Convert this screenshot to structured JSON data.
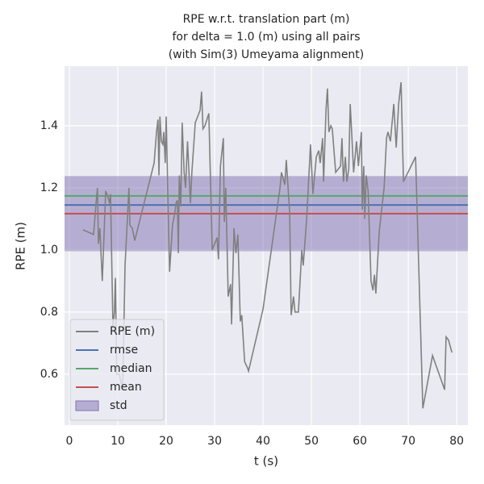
{
  "chart_data": {
    "type": "line",
    "title": [
      "RPE w.r.t. translation part (m)",
      "for delta = 1.0 (m) using all pairs",
      "(with Sim(3) Umeyama alignment)"
    ],
    "xlabel": "t (s)",
    "ylabel": "RPE (m)",
    "xlim": [
      -1,
      82.3
    ],
    "ylim": [
      0.436,
      1.592
    ],
    "xticks": [
      0,
      10,
      20,
      30,
      40,
      50,
      60,
      70,
      80
    ],
    "yticks": [
      0.6,
      0.8,
      {
        "value": 1,
        "label": "1.0"
      },
      1.2,
      1.4
    ],
    "grid": true,
    "legend": "lower left",
    "series": [
      {
        "name": "RPE (m)",
        "color": "#808080",
        "x": [
          2.8,
          5.0,
          5.5,
          5.8,
          6.0,
          6.3,
          6.5,
          6.8,
          7.5,
          8.0,
          8.3,
          8.5,
          9.0,
          9.3,
          9.5,
          9.8,
          10.3,
          11.0,
          11.5,
          12.3,
          12.5,
          13.0,
          13.5,
          17.5,
          18.0,
          18.3,
          18.5,
          18.7,
          19.0,
          19.3,
          19.5,
          19.8,
          20.0,
          20.3,
          20.7,
          21.3,
          21.8,
          22.0,
          22.3,
          22.5,
          22.7,
          23.0,
          23.3,
          23.7,
          24.0,
          24.4,
          25.0,
          25.3,
          26.0,
          26.5,
          27.0,
          27.3,
          27.6,
          28.0,
          28.8,
          29.5,
          30.5,
          30.8,
          31.2,
          31.8,
          32.0,
          32.3,
          32.8,
          33.3,
          33.5,
          34.0,
          34.4,
          34.8,
          35.3,
          35.6,
          36.2,
          36.8,
          37.0,
          40.0,
          43.5,
          43.8,
          44.5,
          44.8,
          45.5,
          45.8,
          46.3,
          46.6,
          47.3,
          48.0,
          48.3,
          49.0,
          49.5,
          49.8,
          50.3,
          51.0,
          51.5,
          51.8,
          52.3,
          52.5,
          53.0,
          53.3,
          53.6,
          54.0,
          54.3,
          55.0,
          56.0,
          56.3,
          56.6,
          57.0,
          57.3,
          57.7,
          58.0,
          58.3,
          58.7,
          59.3,
          59.7,
          60.3,
          60.5,
          60.8,
          61.0,
          61.3,
          61.7,
          62.3,
          62.7,
          63.0,
          63.3,
          64.0,
          65.0,
          65.5,
          65.8,
          66.3,
          67.0,
          67.5,
          68.0,
          68.5,
          69.0,
          71.5,
          72.5,
          73.0,
          75.0,
          77.5,
          77.8,
          78.3,
          79.0
        ],
        "values": [
          1.065,
          1.05,
          1.15,
          1.2,
          1.02,
          1.07,
          1.0,
          0.9,
          1.19,
          1.17,
          1.15,
          1.18,
          0.75,
          0.8,
          0.91,
          0.6,
          0.6,
          0.55,
          0.95,
          1.2,
          1.08,
          1.07,
          1.03,
          1.28,
          1.38,
          1.42,
          1.24,
          1.43,
          1.35,
          1.34,
          1.38,
          1.28,
          1.43,
          1.2,
          0.93,
          1.08,
          1.12,
          1.15,
          1.16,
          0.99,
          1.24,
          1.14,
          1.41,
          1.25,
          1.2,
          1.35,
          1.15,
          1.25,
          1.41,
          1.43,
          1.45,
          1.51,
          1.39,
          1.4,
          1.44,
          1.0,
          1.04,
          0.97,
          1.27,
          1.36,
          1.09,
          1.2,
          0.85,
          0.89,
          0.76,
          1.07,
          0.99,
          1.05,
          0.77,
          0.79,
          0.64,
          0.62,
          0.61,
          0.81,
          1.2,
          1.25,
          1.21,
          1.29,
          1.12,
          0.79,
          0.85,
          0.8,
          0.8,
          1.0,
          0.95,
          1.1,
          1.25,
          1.34,
          1.18,
          1.3,
          1.32,
          1.28,
          1.36,
          1.22,
          1.45,
          1.52,
          1.38,
          1.4,
          1.39,
          1.25,
          1.27,
          1.36,
          1.22,
          1.3,
          1.22,
          1.26,
          1.47,
          1.38,
          1.25,
          1.35,
          1.27,
          1.38,
          1.13,
          1.27,
          1.1,
          1.24,
          1.19,
          0.9,
          0.87,
          0.92,
          0.86,
          1.06,
          1.2,
          1.36,
          1.38,
          1.35,
          1.47,
          1.33,
          1.47,
          1.54,
          1.22,
          1.3,
          0.76,
          0.49,
          0.66,
          0.55,
          0.72,
          0.71,
          0.67
        ]
      }
    ],
    "hlines": [
      {
        "name": "rmse",
        "color": "#4c72b0",
        "value": 1.145
      },
      {
        "name": "median",
        "color": "#55a868",
        "value": 1.174
      },
      {
        "name": "mean",
        "color": "#c44e52",
        "value": 1.117
      }
    ],
    "std": {
      "name": "std",
      "color": "#8172b2",
      "value": 0.121
    }
  }
}
